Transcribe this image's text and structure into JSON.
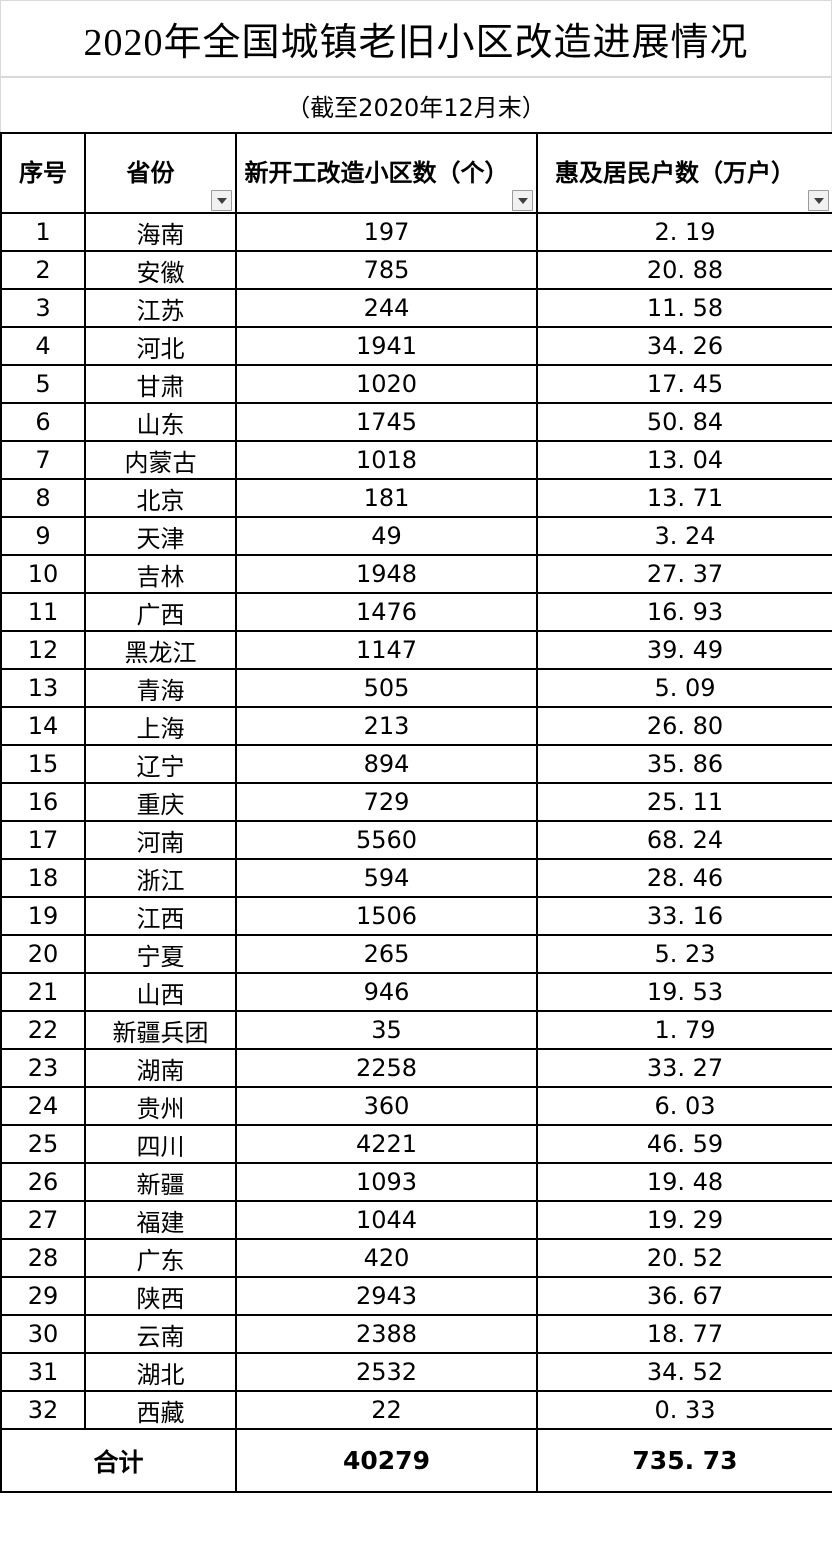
{
  "title": "2020年全国城镇老旧小区改造进展情况",
  "subtitle": "（截至2020年12月末）",
  "table": {
    "columns": [
      {
        "label": "序号",
        "filter": false
      },
      {
        "label": "省份",
        "filter": true
      },
      {
        "label": "新开工改造小区数（个）",
        "filter": true
      },
      {
        "label": "惠及居民户数（万户）",
        "filter": true
      }
    ],
    "rows": [
      [
        "1",
        "海南",
        "197",
        "2. 19"
      ],
      [
        "2",
        "安徽",
        "785",
        "20. 88"
      ],
      [
        "3",
        "江苏",
        "244",
        "11. 58"
      ],
      [
        "4",
        "河北",
        "1941",
        "34. 26"
      ],
      [
        "5",
        "甘肃",
        "1020",
        "17. 45"
      ],
      [
        "6",
        "山东",
        "1745",
        "50. 84"
      ],
      [
        "7",
        "内蒙古",
        "1018",
        "13. 04"
      ],
      [
        "8",
        "北京",
        "181",
        "13. 71"
      ],
      [
        "9",
        "天津",
        "49",
        "3. 24"
      ],
      [
        "10",
        "吉林",
        "1948",
        "27. 37"
      ],
      [
        "11",
        "广西",
        "1476",
        "16. 93"
      ],
      [
        "12",
        "黑龙江",
        "1147",
        "39. 49"
      ],
      [
        "13",
        "青海",
        "505",
        "5. 09"
      ],
      [
        "14",
        "上海",
        "213",
        "26. 80"
      ],
      [
        "15",
        "辽宁",
        "894",
        "35. 86"
      ],
      [
        "16",
        "重庆",
        "729",
        "25. 11"
      ],
      [
        "17",
        "河南",
        "5560",
        "68. 24"
      ],
      [
        "18",
        "浙江",
        "594",
        "28. 46"
      ],
      [
        "19",
        "江西",
        "1506",
        "33. 16"
      ],
      [
        "20",
        "宁夏",
        "265",
        "5. 23"
      ],
      [
        "21",
        "山西",
        "946",
        "19. 53"
      ],
      [
        "22",
        "新疆兵团",
        "35",
        "1. 79"
      ],
      [
        "23",
        "湖南",
        "2258",
        "33. 27"
      ],
      [
        "24",
        "贵州",
        "360",
        "6. 03"
      ],
      [
        "25",
        "四川",
        "4221",
        "46. 59"
      ],
      [
        "26",
        "新疆",
        "1093",
        "19. 48"
      ],
      [
        "27",
        "福建",
        "1044",
        "19. 29"
      ],
      [
        "28",
        "广东",
        "420",
        "20. 52"
      ],
      [
        "29",
        "陕西",
        "2943",
        "36. 67"
      ],
      [
        "30",
        "云南",
        "2388",
        "18. 77"
      ],
      [
        "31",
        "湖北",
        "2532",
        "34. 52"
      ],
      [
        "32",
        "西藏",
        "22",
        "0. 33"
      ]
    ],
    "total": {
      "label": "合计",
      "communities": "40279",
      "households": "735. 73"
    }
  }
}
